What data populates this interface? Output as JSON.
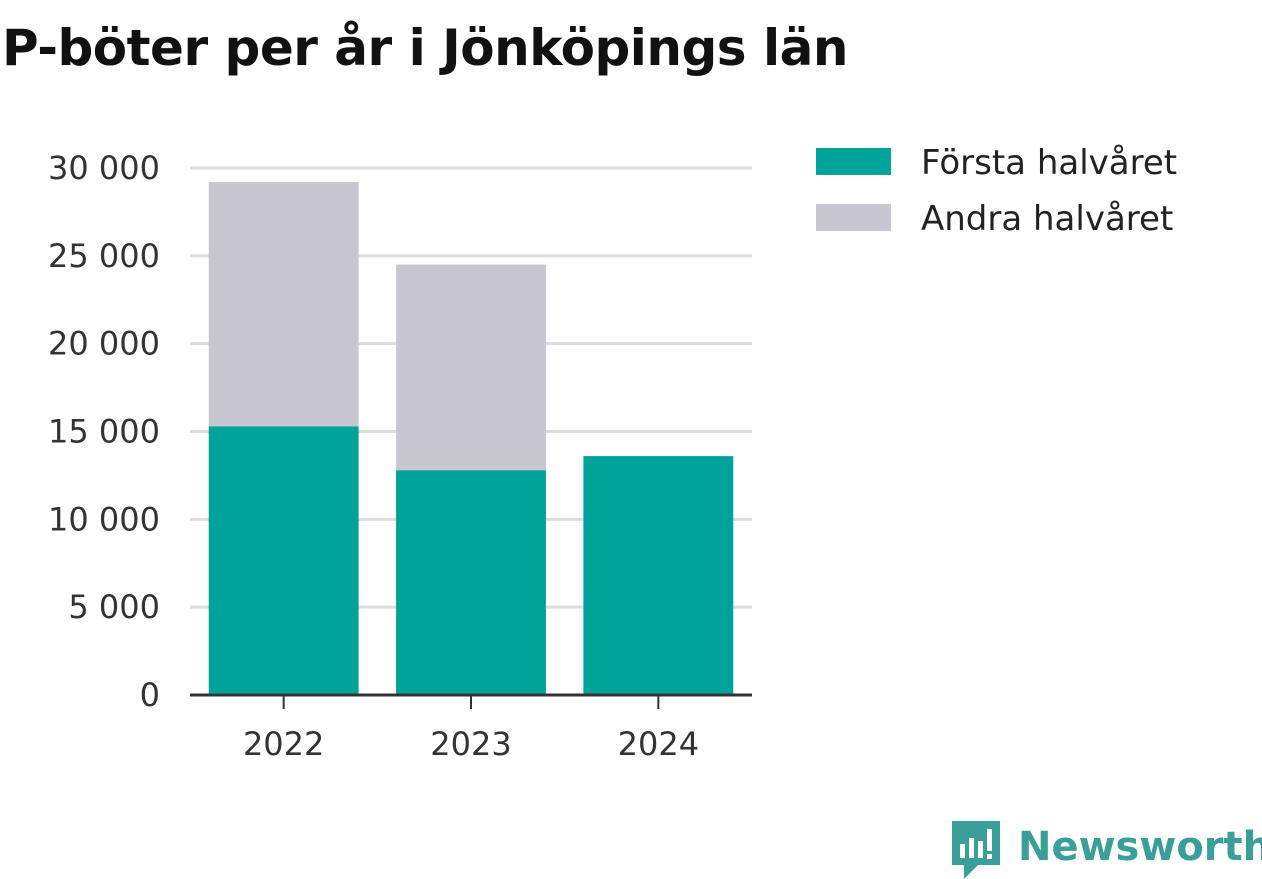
{
  "chart_data": {
    "type": "bar",
    "stacked": true,
    "title": "P-böter per år i Jönköpings län",
    "categories": [
      "2022",
      "2023",
      "2024"
    ],
    "series": [
      {
        "name": "Första halvåret",
        "values": [
          15300,
          12800,
          13600
        ],
        "color": "#00a39a"
      },
      {
        "name": "Andra halvåret",
        "values": [
          13900,
          11700,
          null
        ],
        "color": "#c8c6d1"
      }
    ],
    "xlabel": "",
    "ylabel": "",
    "ylim": [
      0,
      30000
    ],
    "yticks": [
      0,
      5000,
      10000,
      15000,
      20000,
      25000,
      30000
    ],
    "ytick_labels": [
      "0",
      "5 000",
      "10 000",
      "15 000",
      "20 000",
      "25 000",
      "30 000"
    ],
    "grid": true,
    "legend_position": "top-right"
  },
  "branding": {
    "name": "Newsworthy",
    "color": "#3a9e99",
    "icon": "newsworthy-logo-icon"
  },
  "colors": {
    "grid": "#dddddd",
    "axis": "#333333"
  }
}
